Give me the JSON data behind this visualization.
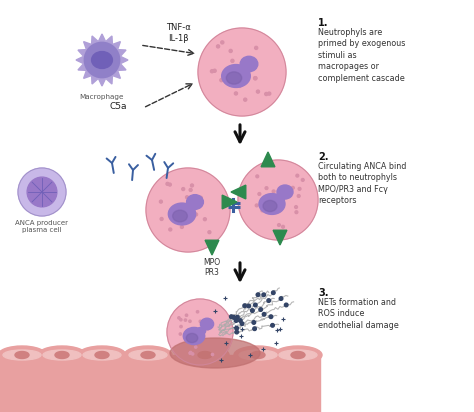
{
  "bg_color": "#ffffff",
  "cell_pink": "#f2afc0",
  "cell_border": "#d0869a",
  "nucleus_purple": "#9878c8",
  "nucleus_purple2": "#7a5faa",
  "macrophage_purple": "#b0a0d8",
  "macrophage_inner": "#9080c8",
  "macrophage_nuc": "#7060b8",
  "plasma_purple": "#c8b8e8",
  "plasma_nuc": "#9878c8",
  "plasma_spoke": "#7060b8",
  "antibody_blue": "#3a5fa0",
  "receptor_green": "#2d8a4e",
  "arrow_color": "#111111",
  "dashed_color": "#333333",
  "endothelial_color": "#e8a0a0",
  "endothelial_light": "#f0c0c0",
  "endothelial_dark": "#c07070",
  "nets_color": "#aaaaaa",
  "dots_color": "#334466",
  "text1_label": "1.",
  "text1_body": "Neutrophyls are\nprimed by exogenous\nstimuli as\nmacropages or\ncomplement cascade",
  "text2_label": "2.",
  "text2_body": "Circulating ANCA bind\nboth to neutrophyls\nMPO/PR3 and Fcγ\nreceptors",
  "text3_label": "3.",
  "text3_body": "NETs formation and\nROS induce\nendothelial damage",
  "tnf_label": "TNF-α\nIL-1β",
  "c5a_label": "C5a",
  "macrophage_label": "Macrophage",
  "plasma_label": "ANCA producer\nplasma cell",
  "mpo_pr3_label": "MPO\nPR3"
}
